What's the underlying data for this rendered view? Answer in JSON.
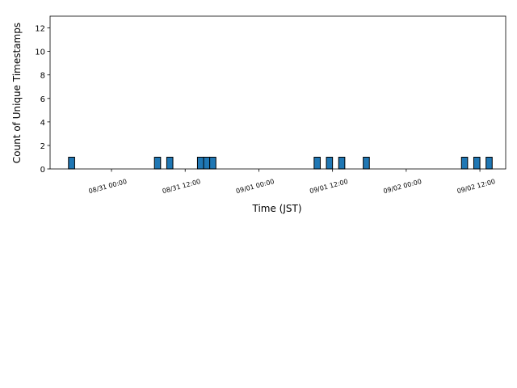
{
  "chart_data": {
    "type": "histogram",
    "xlabel": "Time (JST)",
    "ylabel": "Count of Unique Timestamps",
    "color": "#1f77b4",
    "edgecolor": "#000000",
    "bins": [
      "08/30 17:00",
      "08/30 18:00",
      "08/30 19:00",
      "08/30 20:00",
      "08/30 21:00",
      "08/30 22:00",
      "08/30 23:00",
      "08/31 00:00",
      "08/31 01:00",
      "08/31 02:00",
      "08/31 03:00",
      "08/31 04:00",
      "08/31 05:00",
      "08/31 06:00",
      "08/31 07:00",
      "08/31 08:00",
      "08/31 09:00",
      "08/31 10:00",
      "08/31 11:00",
      "08/31 12:00",
      "08/31 13:00",
      "08/31 14:00",
      "08/31 15:00",
      "08/31 16:00",
      "08/31 17:00",
      "08/31 18:00",
      "08/31 19:00",
      "08/31 20:00",
      "08/31 21:00",
      "08/31 22:00",
      "08/31 23:00",
      "09/01 00:00",
      "09/01 01:00",
      "09/01 02:00",
      "09/01 03:00",
      "09/01 04:00",
      "09/01 05:00",
      "09/01 06:00",
      "09/01 07:00",
      "09/01 08:00",
      "09/01 09:00",
      "09/01 10:00",
      "09/01 11:00",
      "09/01 12:00",
      "09/01 13:00",
      "09/01 14:00",
      "09/01 15:00",
      "09/01 16:00",
      "09/01 17:00",
      "09/01 18:00",
      "09/01 19:00",
      "09/01 20:00",
      "09/01 21:00",
      "09/01 22:00",
      "09/01 23:00",
      "09/02 00:00",
      "09/02 01:00",
      "09/02 02:00",
      "09/02 03:00",
      "09/02 04:00",
      "09/02 05:00",
      "09/02 06:00",
      "09/02 07:00",
      "09/02 08:00",
      "09/02 09:00",
      "09/02 10:00",
      "09/02 11:00",
      "09/02 12:00",
      "09/02 13:00",
      "09/02 14:00"
    ],
    "values": [
      1,
      0,
      0,
      0,
      0,
      0,
      0,
      0,
      0,
      0,
      0,
      0,
      0,
      0,
      1,
      0,
      1,
      0,
      0,
      0,
      0,
      1,
      1,
      1,
      0,
      0,
      0,
      0,
      0,
      0,
      0,
      0,
      0,
      0,
      0,
      0,
      0,
      0,
      0,
      0,
      1,
      0,
      1,
      0,
      1,
      0,
      0,
      0,
      1,
      0,
      0,
      0,
      0,
      0,
      0,
      0,
      0,
      0,
      0,
      0,
      0,
      0,
      0,
      0,
      1,
      0,
      1,
      0,
      1
    ],
    "xlim": [
      "08/30 14:00",
      "09/02 16:12"
    ],
    "xticks": [
      "08/31 00:00",
      "08/31 12:00",
      "09/01 00:00",
      "09/01 12:00",
      "09/02 00:00",
      "09/02 12:00"
    ],
    "ylim": [
      0,
      13
    ],
    "yticks": [
      0,
      2,
      4,
      6,
      8,
      10,
      12
    ]
  }
}
